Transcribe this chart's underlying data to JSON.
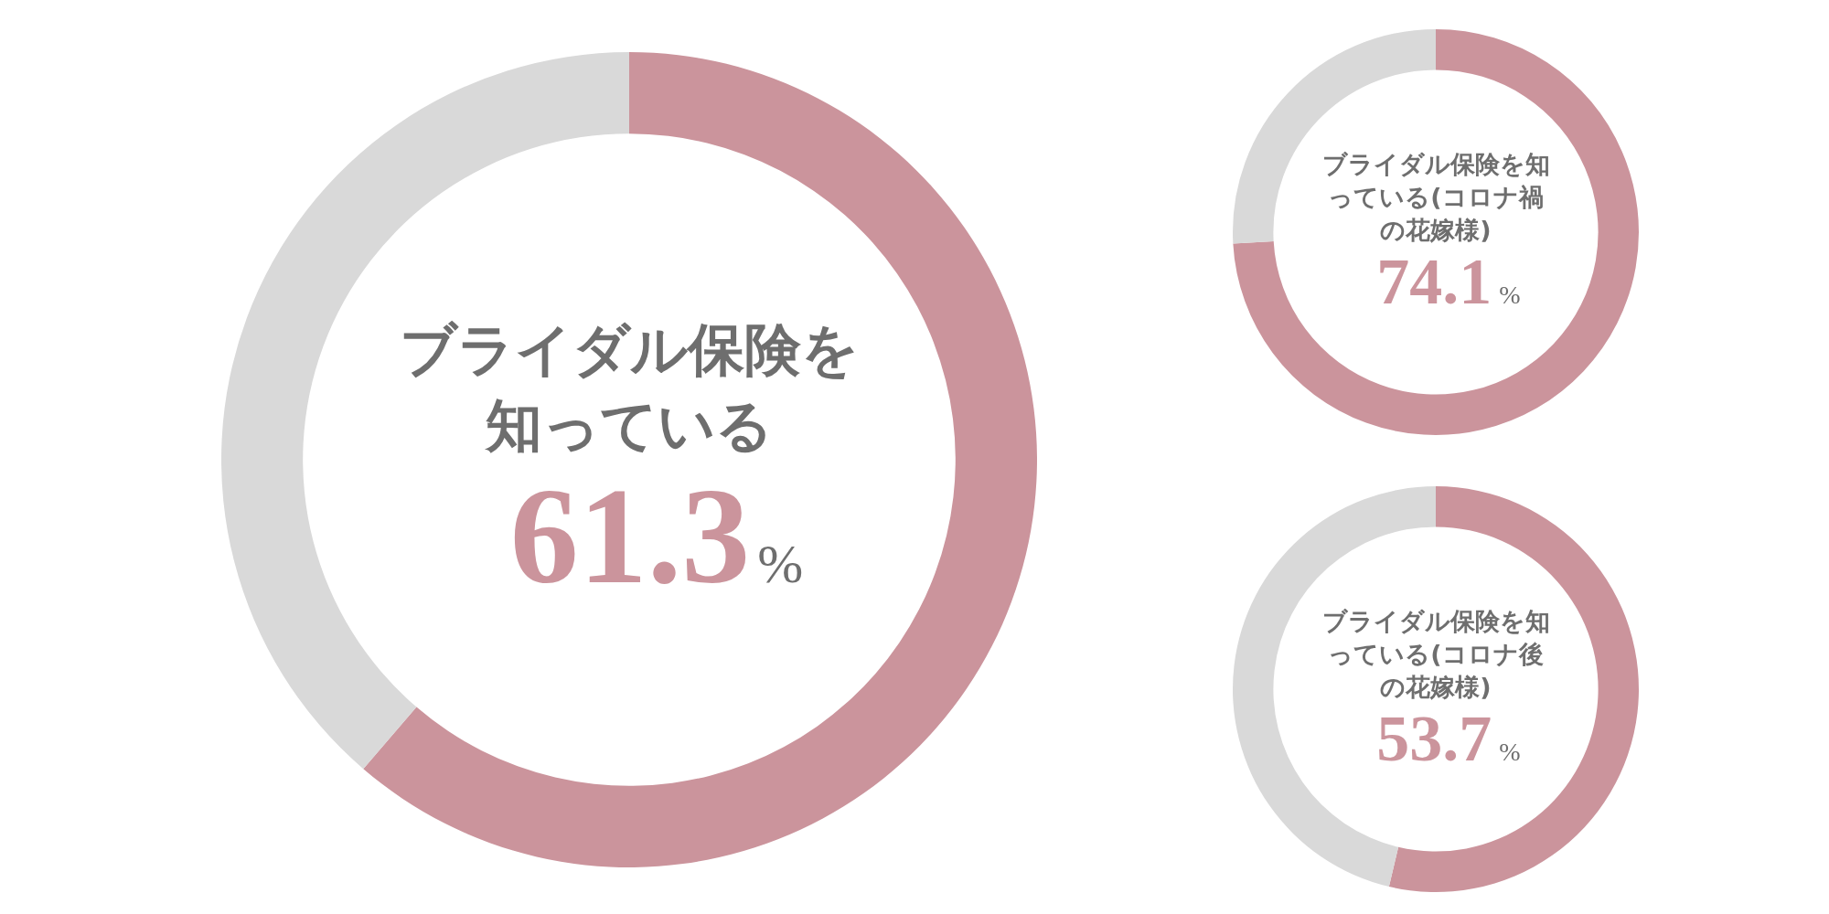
{
  "chart_data": [
    {
      "type": "donut",
      "title": "ブライダル保険を知っている",
      "categories": [
        null,
        null
      ],
      "values": [
        61.3,
        38.7
      ],
      "colors": [
        "#cb949c",
        "#d9d9d9"
      ],
      "value_labels": [
        "61.3%",
        null
      ],
      "legend": false
    },
    {
      "type": "donut",
      "title": "ブライダル保険を知っている(コロナ禍の花嫁様)",
      "categories": [
        null,
        null
      ],
      "values": [
        74.1,
        25.9
      ],
      "colors": [
        "#cb949c",
        "#d9d9d9"
      ],
      "value_labels": [
        "74.1%",
        null
      ],
      "legend": false
    },
    {
      "type": "donut",
      "title": "ブライダル保険を知っている(コロナ後の花嫁様)",
      "categories": [
        null,
        null
      ],
      "values": [
        53.7,
        46.3
      ],
      "colors": [
        "#cb949c",
        "#d9d9d9"
      ],
      "value_labels": [
        "53.7%",
        null
      ],
      "legend": false
    }
  ]
}
